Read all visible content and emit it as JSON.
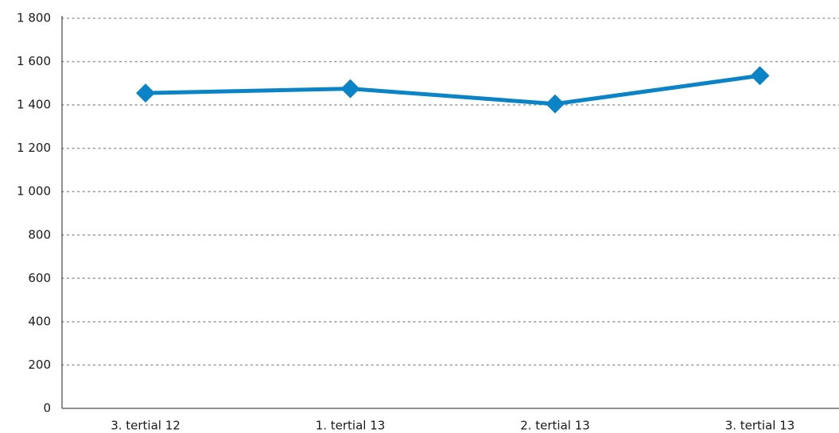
{
  "chart_data": {
    "type": "line",
    "categories": [
      "3. tertial 12",
      "1. tertial 13",
      "2. tertial 13",
      "3. tertial 13"
    ],
    "series": [
      {
        "name": null,
        "color": "#0a84c6",
        "values": [
          1455,
          1475,
          1405,
          1535
        ]
      }
    ],
    "ylim": [
      0,
      1800
    ],
    "yticks": [
      0,
      200,
      400,
      600,
      800,
      {
        "value": 1000,
        "label": "1 000"
      },
      {
        "value": 1200,
        "label": "1 200"
      },
      {
        "value": 1400,
        "label": "1 400"
      },
      {
        "value": 1600,
        "label": "1 600"
      },
      {
        "value": 1800,
        "label": "1 800"
      }
    ],
    "grid": true
  }
}
